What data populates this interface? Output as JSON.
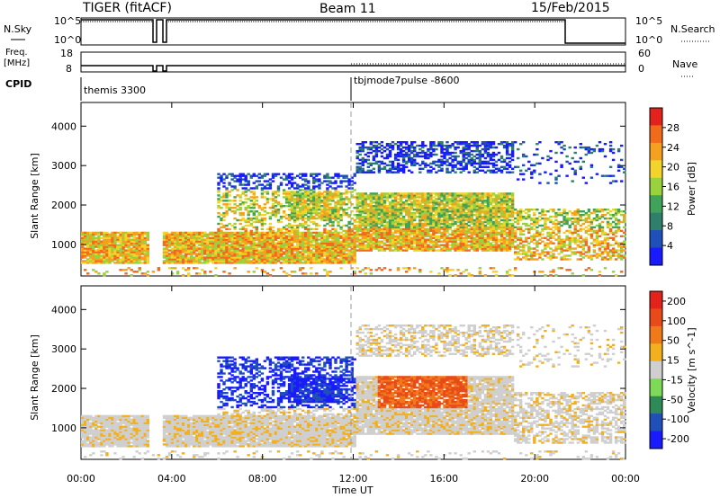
{
  "header": {
    "title_left": "TIGER (fitACF)",
    "title_center": "Beam 11",
    "title_right": "15/Feb/2015"
  },
  "top_panels": {
    "nsky_label": "N.Sky",
    "nsearch_label": "N.Search",
    "nsky_ticks": [
      "10^5",
      "10^0"
    ],
    "nsearch_ticks": [
      "10^5",
      "10^0"
    ],
    "freq_label_1": "Freq.",
    "freq_label_2": "[MHz]",
    "freq_ticks": [
      "18",
      "8"
    ],
    "nave_label": "Nave",
    "nave_ticks": [
      "60",
      "0"
    ],
    "cpid_label": "CPID",
    "cpid_modes": [
      "themis 3300",
      "tbjmode7pulse -8600"
    ],
    "data_gap_hours": [
      [
        2.9,
        3.1
      ],
      [
        3.4,
        3.5
      ]
    ]
  },
  "chart_data": [
    {
      "type": "heatmap",
      "name": "power",
      "ylabel": "Slant Range [km]",
      "ylim": [
        200,
        4600
      ],
      "yticks": [
        "1000",
        "2000",
        "3000",
        "4000"
      ],
      "colorbar_label": "Power [dB]",
      "colorbar_ticks": [
        "4",
        "8",
        "12",
        "16",
        "20",
        "24",
        "28"
      ],
      "colorbar_range": [
        0,
        32
      ],
      "colors": [
        "#1a1aff",
        "#1f4fb8",
        "#2f7f6c",
        "#3fa45a",
        "#9ad23d",
        "#f2d42a",
        "#f6a01f",
        "#f26a1c",
        "#e3231b"
      ]
    },
    {
      "type": "heatmap",
      "name": "velocity",
      "ylabel": "Slant Range [km]",
      "ylim": [
        200,
        4600
      ],
      "yticks": [
        "1000",
        "2000",
        "3000",
        "4000"
      ],
      "colorbar_label": "Velocity [m s^-1]",
      "colorbar_ticks": [
        "200",
        "100",
        "50",
        "15",
        "-15",
        "-50",
        "-100",
        "-200"
      ],
      "colors": [
        "#1a1aff",
        "#1f4fb8",
        "#2e8b57",
        "#7ed957",
        "#cfcfcf",
        "#f2b01e",
        "#f07a1a",
        "#e84a1a",
        "#e3231b"
      ]
    }
  ],
  "x_axis": {
    "ticks": [
      "00:00",
      "04:00",
      "08:00",
      "12:00",
      "16:00",
      "20:00",
      "00:00"
    ],
    "label": "Time UT"
  }
}
